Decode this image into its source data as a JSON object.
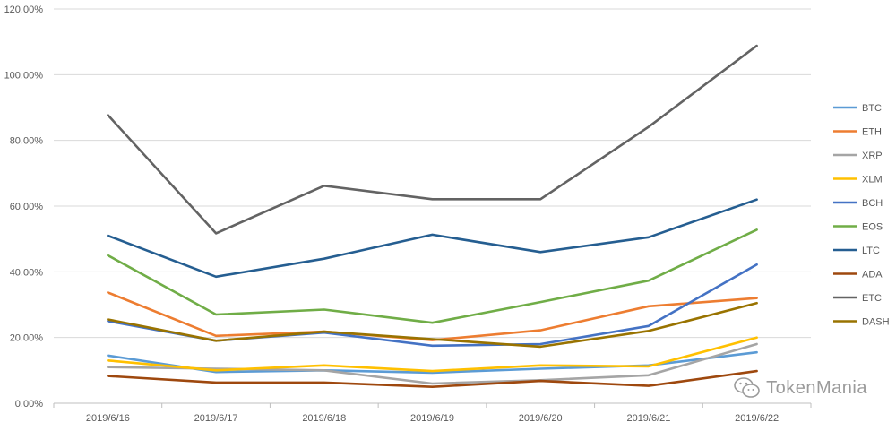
{
  "chart_data": {
    "type": "line",
    "title": "",
    "xlabel": "",
    "ylabel": "",
    "categories": [
      "2019/6/16",
      "2019/6/17",
      "2019/6/18",
      "2019/6/19",
      "2019/6/20",
      "2019/6/21",
      "2019/6/22"
    ],
    "y_ticks": [
      "0.00%",
      "20.00%",
      "40.00%",
      "60.00%",
      "80.00%",
      "100.00%",
      "120.00%"
    ],
    "ylim": [
      0,
      120
    ],
    "y_unit": "%",
    "grid": true,
    "legend_position": "right",
    "series": [
      {
        "name": "BTC",
        "color": "#5b9bd5",
        "values": [
          14.5,
          9.5,
          10.0,
          9.3,
          10.5,
          11.5,
          15.5
        ]
      },
      {
        "name": "ETH",
        "color": "#ed7d31",
        "values": [
          33.7,
          20.5,
          21.8,
          19.2,
          22.2,
          29.5,
          32.0
        ]
      },
      {
        "name": "XRP",
        "color": "#a5a5a5",
        "values": [
          11.0,
          10.5,
          10.0,
          6.0,
          7.0,
          8.5,
          18.0
        ]
      },
      {
        "name": "XLM",
        "color": "#ffc000",
        "values": [
          13.0,
          10.0,
          11.5,
          9.8,
          11.5,
          11.2,
          20.0
        ]
      },
      {
        "name": "BCH",
        "color": "#4472c4",
        "values": [
          25.0,
          19.0,
          21.5,
          17.5,
          18.0,
          23.5,
          42.2
        ]
      },
      {
        "name": "EOS",
        "color": "#70ad47",
        "values": [
          45.0,
          27.0,
          28.5,
          24.5,
          30.8,
          37.3,
          52.8
        ]
      },
      {
        "name": "LTC",
        "color": "#255e91",
        "values": [
          51.0,
          38.5,
          44.0,
          51.3,
          46.0,
          50.5,
          62.0
        ]
      },
      {
        "name": "ADA",
        "color": "#9e480e",
        "values": [
          8.3,
          6.3,
          6.3,
          5.0,
          6.8,
          5.3,
          9.8
        ]
      },
      {
        "name": "ETC",
        "color": "#636363",
        "values": [
          87.7,
          51.7,
          66.2,
          62.1,
          62.1,
          84.1,
          108.8
        ]
      },
      {
        "name": "DASH",
        "color": "#997300",
        "values": [
          25.5,
          19.0,
          21.8,
          19.5,
          17.2,
          22.0,
          30.5
        ]
      }
    ]
  },
  "watermark": {
    "text": "TokenMania",
    "icon": "wechat-icon"
  }
}
